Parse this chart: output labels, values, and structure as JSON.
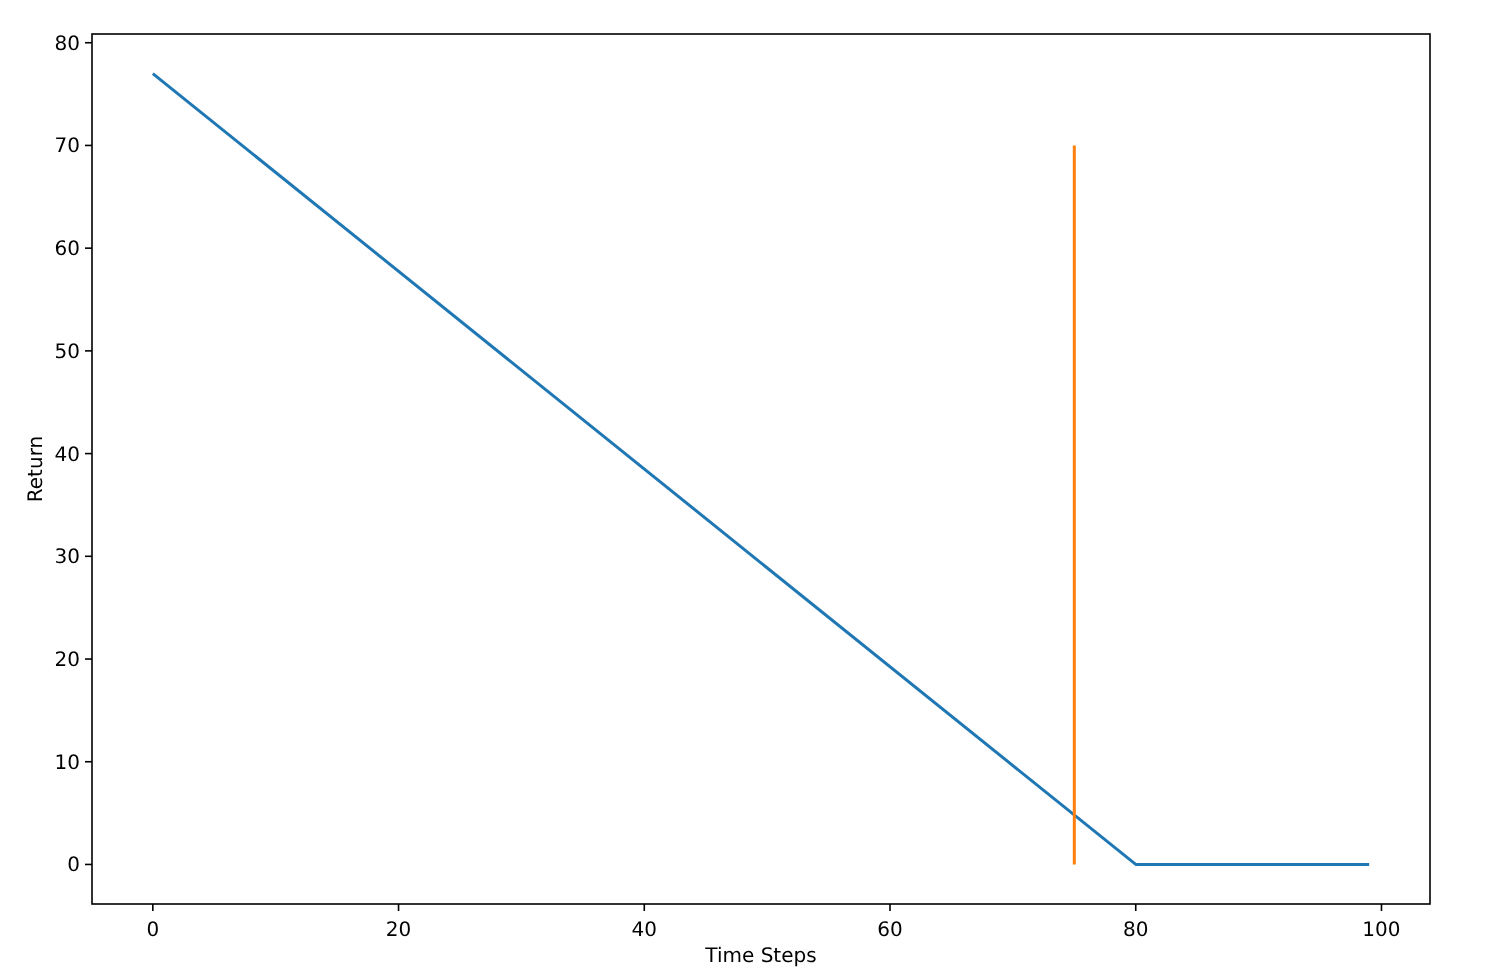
{
  "chart_data": {
    "type": "line",
    "xlabel": "Time Steps",
    "ylabel": "Return",
    "series": [
      {
        "color": "#1f77b4",
        "x": [
          0,
          80,
          99
        ],
        "values": [
          77,
          0,
          0
        ]
      },
      {
        "color": "#ff7f0e",
        "x": [
          75,
          75
        ],
        "values": [
          0,
          70
        ]
      }
    ],
    "xlim": [
      -4.95,
      103.95
    ],
    "ylim": [
      -3.85,
      80.85
    ],
    "xticks": [
      0,
      20,
      40,
      60,
      80,
      100
    ],
    "yticks": [
      0,
      10,
      20,
      30,
      40,
      50,
      60,
      70,
      80
    ],
    "grid": false,
    "marker": "none",
    "line_style": "solid"
  }
}
